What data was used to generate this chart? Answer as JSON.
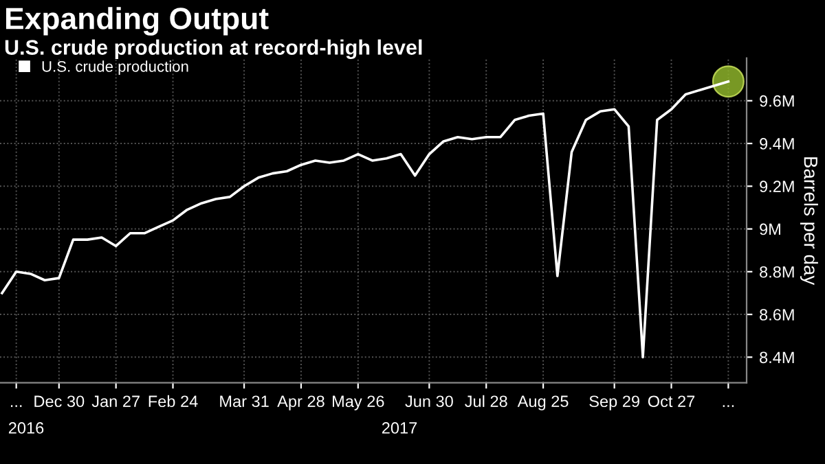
{
  "chart_data": {
    "type": "line",
    "title": "Expanding Output",
    "subtitle": "U.S. crude production at record-high level",
    "ylabel": "Barrels per day",
    "x": [
      "2016-12-02",
      "2016-12-09",
      "2016-12-16",
      "2016-12-23",
      "2016-12-30",
      "2017-01-06",
      "2017-01-13",
      "2017-01-20",
      "2017-01-27",
      "2017-02-03",
      "2017-02-10",
      "2017-02-17",
      "2017-02-24",
      "2017-03-03",
      "2017-03-10",
      "2017-03-17",
      "2017-03-24",
      "2017-03-31",
      "2017-04-07",
      "2017-04-14",
      "2017-04-21",
      "2017-04-28",
      "2017-05-05",
      "2017-05-12",
      "2017-05-19",
      "2017-05-26",
      "2017-06-02",
      "2017-06-09",
      "2017-06-16",
      "2017-06-23",
      "2017-06-30",
      "2017-07-07",
      "2017-07-14",
      "2017-07-21",
      "2017-07-28",
      "2017-08-04",
      "2017-08-11",
      "2017-08-18",
      "2017-08-25",
      "2017-09-01",
      "2017-09-08",
      "2017-09-15",
      "2017-09-22",
      "2017-09-29",
      "2017-10-06",
      "2017-10-13",
      "2017-10-20",
      "2017-10-27",
      "2017-11-03",
      "2017-11-10",
      "2017-11-17",
      "2017-11-24"
    ],
    "series": [
      {
        "name": "U.S. crude production",
        "color": "#ffffff",
        "values": [
          8.7,
          8.8,
          8.79,
          8.76,
          8.77,
          8.95,
          8.95,
          8.96,
          8.92,
          8.98,
          8.98,
          9.01,
          9.04,
          9.09,
          9.12,
          9.14,
          9.15,
          9.2,
          9.24,
          9.26,
          9.27,
          9.3,
          9.32,
          9.31,
          9.32,
          9.35,
          9.32,
          9.33,
          9.35,
          9.25,
          9.35,
          9.41,
          9.43,
          9.42,
          9.43,
          9.43,
          9.51,
          9.53,
          9.54,
          8.78,
          9.36,
          9.51,
          9.55,
          9.56,
          9.48,
          8.4,
          9.51,
          9.56,
          9.63,
          9.65,
          9.67,
          9.69
        ]
      },
      {
        "type": "scatter",
        "color": "#8db32a",
        "marker": "circle",
        "x": [
          "2017-11-24"
        ],
        "values": [
          9.69
        ]
      }
    ],
    "xlim": [
      "2016-12-01",
      "2017-12-03"
    ],
    "xticks": [
      {
        "value": "2016-12-09",
        "label": "..."
      },
      {
        "value": "2016-12-30",
        "label": "Dec 30"
      },
      {
        "value": "2017-01-27",
        "label": "Jan 27"
      },
      {
        "value": "2017-02-24",
        "label": "Feb 24"
      },
      {
        "value": "2017-03-31",
        "label": "Mar 31"
      },
      {
        "value": "2017-04-28",
        "label": "Apr 28"
      },
      {
        "value": "2017-05-26",
        "label": "May 26"
      },
      {
        "value": "2017-06-30",
        "label": "Jun 30"
      },
      {
        "value": "2017-07-28",
        "label": "Jul 28"
      },
      {
        "value": "2017-08-25",
        "label": "Aug 25"
      },
      {
        "value": "2017-09-29",
        "label": "Sep 29"
      },
      {
        "value": "2017-10-27",
        "label": "Oct 27"
      },
      {
        "value": "2017-11-24",
        "label": "..."
      }
    ],
    "ylim": [
      8.28,
      9.8
    ],
    "yticks": [
      {
        "value": 8.4,
        "label": "8.4M"
      },
      {
        "value": 8.6,
        "label": "8.6M"
      },
      {
        "value": 8.8,
        "label": "8.8M"
      },
      {
        "value": 9.0,
        "label": "9M"
      },
      {
        "value": 9.2,
        "label": "9.2M"
      },
      {
        "value": 9.4,
        "label": "9.4M"
      },
      {
        "value": 9.6,
        "label": "9.6M"
      }
    ],
    "annotations": [
      "2016",
      "2017"
    ],
    "grid": true,
    "legend": "top left",
    "marker": "none",
    "line_style": "solid"
  }
}
